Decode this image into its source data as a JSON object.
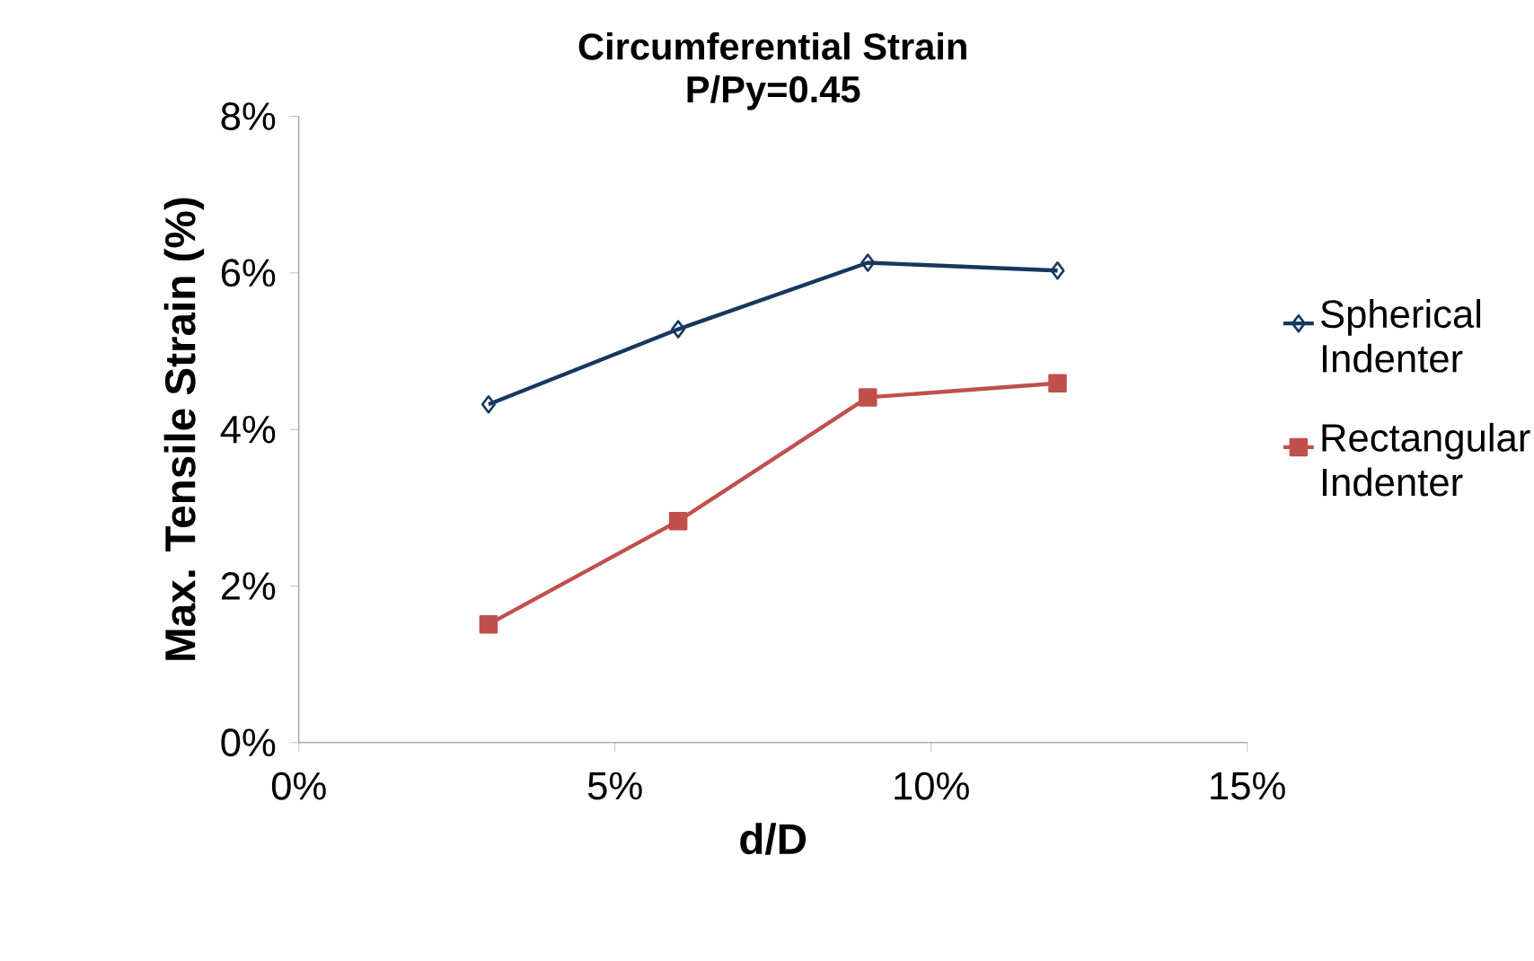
{
  "chart_data": {
    "type": "line",
    "title": "Circumferential Strain",
    "subtitle": "P/Py=0.45",
    "xlabel": "d/D",
    "ylabel": "Max. Tensile Strain (%)",
    "x": [
      3,
      6,
      9,
      12
    ],
    "series": [
      {
        "name": "Spherical Indenter",
        "color": "#17375e",
        "marker": "diamond",
        "values": [
          4.32,
          5.28,
          6.13,
          6.03
        ]
      },
      {
        "name": "Rectangular Indenter",
        "color": "#c0504d",
        "marker": "square",
        "values": [
          1.51,
          2.83,
          4.41,
          4.59
        ]
      }
    ],
    "xlim": [
      0,
      15
    ],
    "ylim": [
      0,
      8
    ],
    "xticks": [
      {
        "value": 0,
        "label": "0%"
      },
      {
        "value": 5,
        "label": "5%"
      },
      {
        "value": 10,
        "label": "10%"
      },
      {
        "value": 15,
        "label": "15%"
      }
    ],
    "yticks": [
      {
        "value": 0,
        "label": "0%"
      },
      {
        "value": 2,
        "label": "2%"
      },
      {
        "value": 4,
        "label": "4%"
      },
      {
        "value": 6,
        "label": "6%"
      },
      {
        "value": 8,
        "label": "8%"
      }
    ],
    "grid": false,
    "legend": "right",
    "line_style": "solid"
  }
}
